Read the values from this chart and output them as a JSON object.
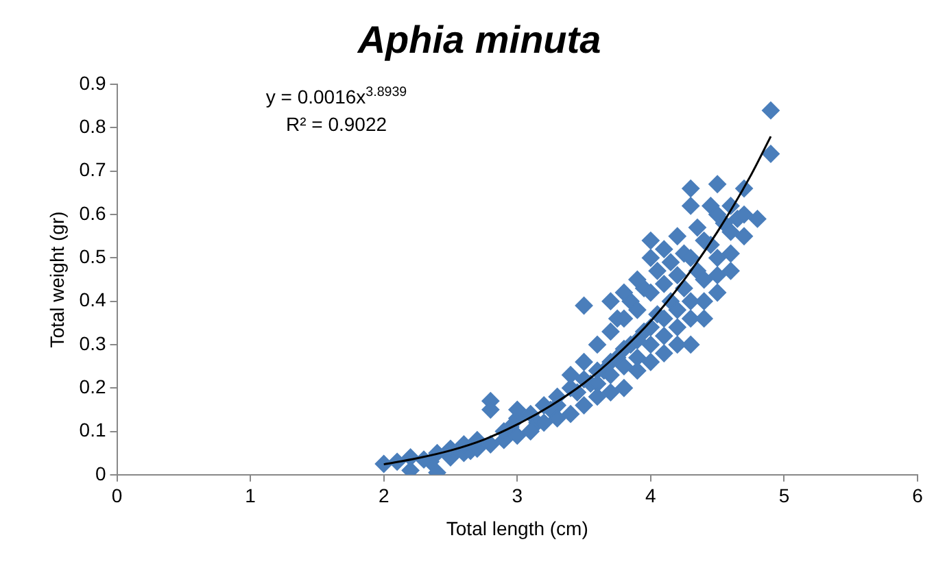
{
  "chart_data": {
    "type": "scatter",
    "title": "Aphia minuta",
    "xlabel": "Total length (cm)",
    "ylabel": "Total weight (gr)",
    "xlim": [
      0,
      6
    ],
    "xticks": [
      0,
      1,
      2,
      3,
      4,
      5,
      6
    ],
    "ylim": [
      0,
      0.9
    ],
    "yticks": [
      0,
      0.1,
      0.2,
      0.3,
      0.4,
      0.5,
      0.6,
      0.7,
      0.8,
      0.9
    ],
    "grid": false,
    "legend": false,
    "marker": "diamond",
    "annotations": [
      "y = 0.0016x$^{3.8939}$",
      "R² = 0.9022"
    ],
    "series": [
      {
        "type": "scatter",
        "color": "#4a7ebb",
        "x": [
          3.3,
          3.45,
          3.55,
          3.65,
          3.75,
          3.85,
          3.95,
          4.05,
          4.15,
          4.25,
          4.35,
          4.45,
          4.55,
          4.65,
          3.6,
          3.7,
          3.8,
          3.9,
          4.0,
          4.1,
          4.2,
          4.3,
          4.4,
          4.5,
          4.6,
          3.75,
          3.85,
          3.95,
          4.05,
          4.15,
          4.25,
          4.35,
          4.45,
          2.35,
          2.65,
          2.95,
          3.15,
          3.25,
          2.0,
          2.1,
          2.2,
          2.2,
          2.3,
          2.4,
          2.4,
          2.5,
          2.5,
          2.6,
          2.6,
          2.7,
          2.7,
          2.8,
          2.8,
          2.8,
          2.9,
          2.9,
          3.0,
          3.0,
          3.0,
          3.1,
          3.1,
          3.2,
          3.2,
          3.3,
          3.3,
          3.4,
          3.4,
          3.4,
          3.5,
          3.5,
          3.5,
          3.5,
          3.6,
          3.6,
          3.6,
          3.7,
          3.7,
          3.7,
          3.7,
          3.8,
          3.8,
          3.8,
          3.8,
          3.9,
          3.9,
          3.9,
          3.9,
          4.0,
          4.0,
          4.0,
          4.0,
          4.0,
          4.1,
          4.1,
          4.1,
          4.1,
          4.2,
          4.2,
          4.2,
          4.2,
          4.3,
          4.3,
          4.3,
          4.3,
          4.3,
          4.4,
          4.4,
          4.4,
          4.5,
          4.5,
          4.5,
          4.5,
          4.6,
          4.6,
          4.6,
          4.7,
          4.7,
          4.7,
          4.8,
          4.9,
          4.9
        ],
        "values": [
          0.16,
          0.19,
          0.21,
          0.24,
          0.27,
          0.3,
          0.33,
          0.37,
          0.4,
          0.43,
          0.47,
          0.53,
          0.58,
          0.59,
          0.21,
          0.23,
          0.25,
          0.27,
          0.3,
          0.32,
          0.34,
          0.36,
          0.4,
          0.46,
          0.51,
          0.36,
          0.4,
          0.43,
          0.47,
          0.49,
          0.51,
          0.57,
          0.62,
          0.03,
          0.055,
          0.11,
          0.12,
          0.15,
          0.025,
          0.03,
          0.01,
          0.04,
          0.035,
          0.005,
          0.05,
          0.04,
          0.06,
          0.05,
          0.07,
          0.06,
          0.08,
          0.17,
          0.15,
          0.07,
          0.08,
          0.1,
          0.09,
          0.13,
          0.15,
          0.1,
          0.14,
          0.12,
          0.16,
          0.13,
          0.18,
          0.14,
          0.2,
          0.23,
          0.16,
          0.22,
          0.26,
          0.39,
          0.18,
          0.24,
          0.3,
          0.19,
          0.26,
          0.33,
          0.4,
          0.2,
          0.29,
          0.36,
          0.42,
          0.24,
          0.31,
          0.38,
          0.45,
          0.26,
          0.34,
          0.42,
          0.5,
          0.54,
          0.28,
          0.36,
          0.44,
          0.52,
          0.3,
          0.38,
          0.46,
          0.55,
          0.3,
          0.4,
          0.5,
          0.62,
          0.66,
          0.36,
          0.45,
          0.54,
          0.42,
          0.5,
          0.6,
          0.67,
          0.47,
          0.56,
          0.62,
          0.55,
          0.6,
          0.66,
          0.59,
          0.74,
          0.84
        ]
      },
      {
        "type": "line",
        "color": "#000000",
        "marker": "none",
        "x": [
          2.0,
          2.25,
          2.5,
          2.75,
          3.0,
          3.25,
          3.5,
          3.75,
          4.0,
          4.25,
          4.5,
          4.75,
          4.9
        ],
        "values": [
          0.024,
          0.038,
          0.056,
          0.081,
          0.116,
          0.159,
          0.211,
          0.277,
          0.354,
          0.449,
          0.56,
          0.69,
          0.78
        ]
      }
    ]
  }
}
